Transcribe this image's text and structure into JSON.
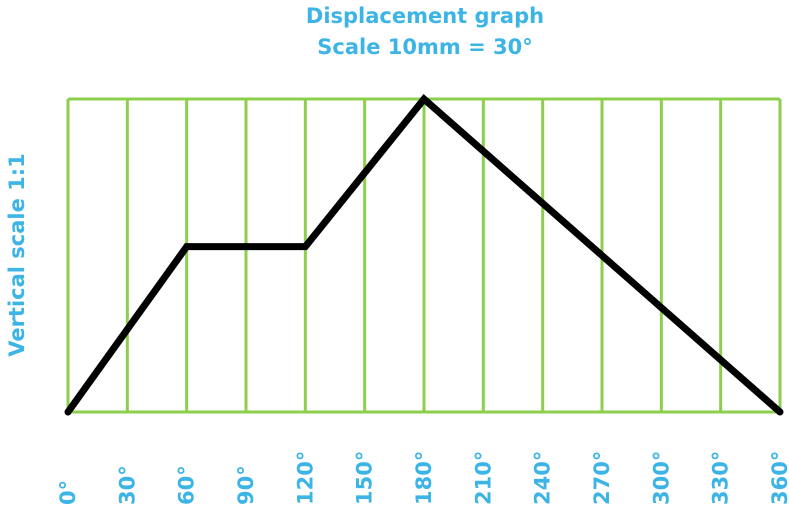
{
  "chart_data": {
    "type": "line",
    "title": "Displacement graph",
    "subtitle": "Scale 10mm = 30°",
    "y_label": "Vertical scale 1:1",
    "x": [
      0,
      60,
      120,
      180,
      360
    ],
    "series": [
      {
        "color": "#000000",
        "values": [
          0,
          28,
          28,
          53,
          0
        ]
      }
    ],
    "xlim": [
      0,
      360
    ],
    "xticks": [
      {
        "value": 0,
        "label": "0°"
      },
      {
        "value": 30,
        "label": "30°"
      },
      {
        "value": 60,
        "label": "60°"
      },
      {
        "value": 90,
        "label": "90°"
      },
      {
        "value": 120,
        "label": "120°"
      },
      {
        "value": 150,
        "label": "150°"
      },
      {
        "value": 180,
        "label": "180°"
      },
      {
        "value": 210,
        "label": "210°"
      },
      {
        "value": 240,
        "label": "240°"
      },
      {
        "value": 270,
        "label": "270°"
      },
      {
        "value": 300,
        "label": "300°"
      },
      {
        "value": 330,
        "label": "330°"
      },
      {
        "value": 360,
        "label": "360°"
      }
    ],
    "ylim": [
      0,
      53
    ],
    "grid": true,
    "grid_color": "#8ccf4d"
  }
}
